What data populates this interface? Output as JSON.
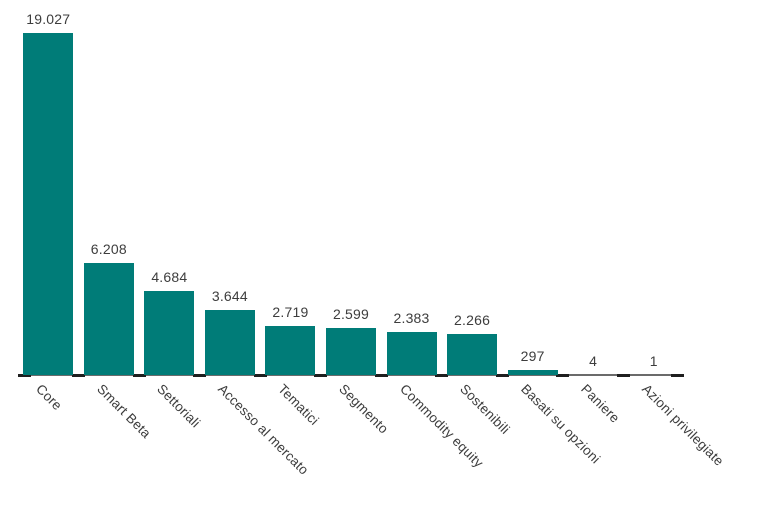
{
  "chart_data": {
    "type": "bar",
    "title": "",
    "xlabel": "",
    "ylabel": "",
    "categories": [
      "Core",
      "Smart Beta",
      "Settoriali",
      "Accesso al mercato",
      "Tematici",
      "Segmento",
      "Commodity equity",
      "Sostenibili",
      "Basati su opzioni",
      "Paniere",
      "Azioni privilegiate"
    ],
    "values": [
      19027,
      6208,
      4684,
      3644,
      2719,
      2599,
      2383,
      2266,
      297,
      4,
      1
    ],
    "value_labels": [
      "19.027",
      "6.208",
      "4.684",
      "3.644",
      "2.719",
      "2.599",
      "2.383",
      "2.266",
      "297",
      "4",
      "1"
    ],
    "ylim": [
      0,
      19027
    ],
    "grid": false,
    "legend": "none",
    "bar_color": "#007C78",
    "axis_line_color": "#6B6B6B",
    "tick_color": "#1F1F1F",
    "text_color": "#3D3D3D",
    "background_color": "#FFFFFF",
    "category_label_rotation_deg": 45
  }
}
